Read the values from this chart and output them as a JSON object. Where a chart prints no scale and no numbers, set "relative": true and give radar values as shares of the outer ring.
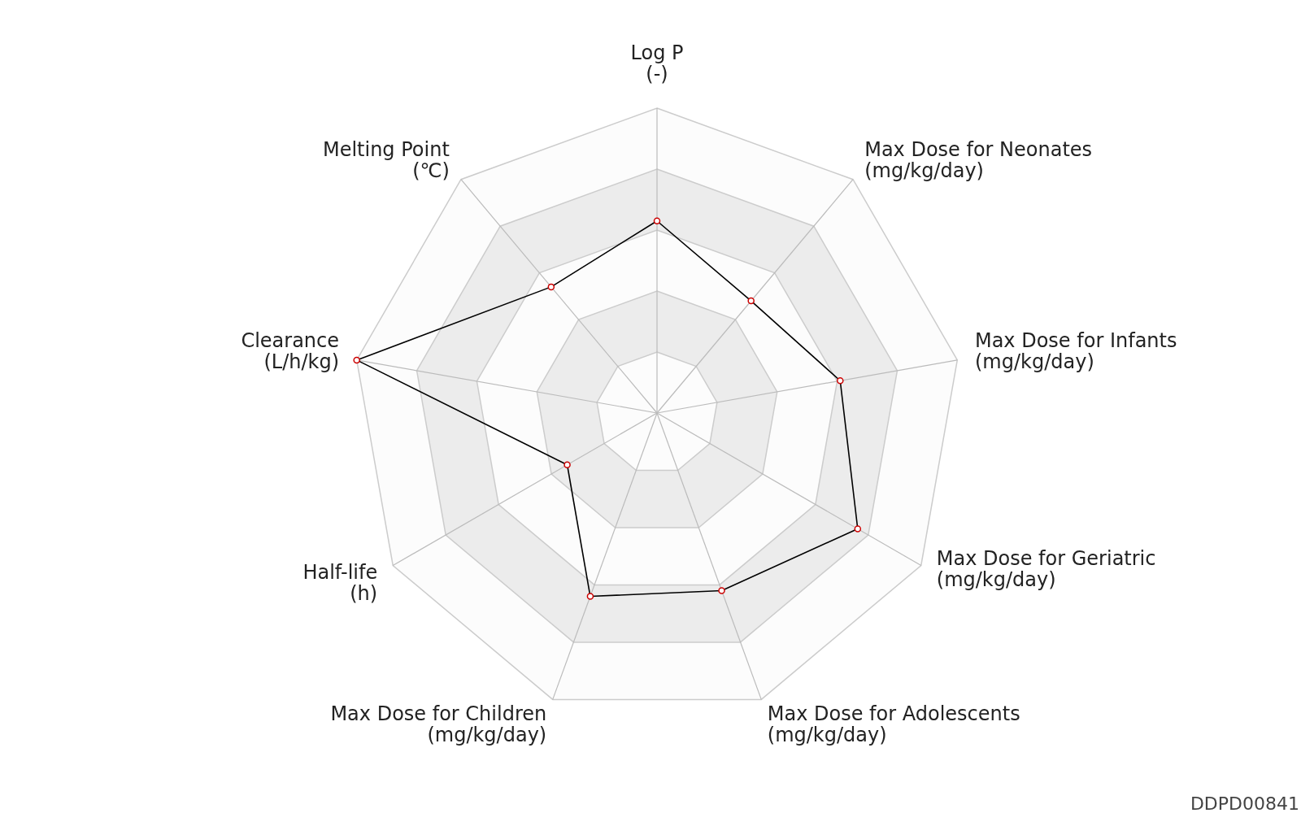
{
  "chart_data": {
    "type": "radar",
    "relative": true,
    "categories": [
      "Log P\n(-)",
      "Max Dose for Neonates\n(mg/kg/day)",
      "Max Dose for Infants\n(mg/kg/day)",
      "Max Dose for Geriatric\n(mg/kg/day)",
      "Max Dose for Adolescents\n(mg/kg/day)",
      "Max Dose for Children\n(mg/kg/day)",
      "Half-life\n(h)",
      "Clearance\n(L/h/kg)",
      "Melting Point\n(℃)"
    ],
    "series": [
      {
        "color": "#000000",
        "values": [
          0.63,
          0.48,
          0.61,
          0.76,
          0.62,
          0.64,
          0.34,
          1.0,
          0.54
        ]
      }
    ],
    "marker": "circle",
    "annotations": [
      "DDPD00841"
    ]
  }
}
